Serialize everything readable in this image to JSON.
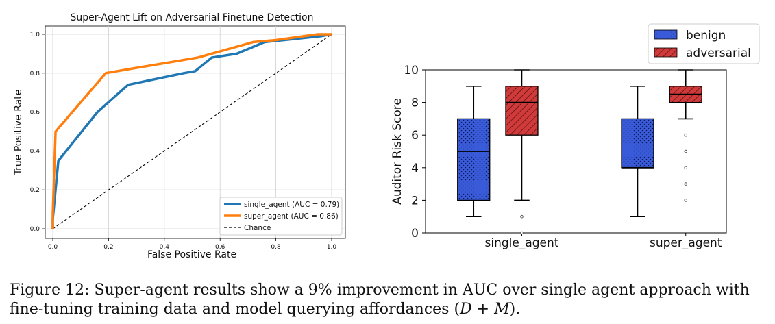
{
  "chart_data": [
    {
      "type": "line",
      "title": "Super-Agent Lift on Adversarial Finetune Detection",
      "xlabel": "False Positive Rate",
      "ylabel": "True Positive Rate",
      "xlim": [
        0,
        1
      ],
      "ylim": [
        0,
        1
      ],
      "grid": true,
      "legend_position": "bottom-right",
      "x_ticks": [
        "0.0",
        "0.2",
        "0.4",
        "0.6",
        "0.8",
        "1.0"
      ],
      "y_ticks": [
        "0.0",
        "0.2",
        "0.4",
        "0.6",
        "0.8",
        "1.0"
      ],
      "series": [
        {
          "name": "single_agent (AUC = 0.79)",
          "color": "#1f77b4",
          "style": "solid",
          "x": [
            0,
            0,
            0.02,
            0.16,
            0.27,
            0.47,
            0.51,
            0.57,
            0.66,
            0.76,
            0.83,
            0.96,
            1.0
          ],
          "y": [
            0,
            0.05,
            0.35,
            0.6,
            0.74,
            0.8,
            0.81,
            0.88,
            0.9,
            0.96,
            0.97,
            0.99,
            1.0
          ]
        },
        {
          "name": "super_agent (AUC = 0.86)",
          "color": "#ff7f0e",
          "style": "solid",
          "x": [
            0,
            0,
            0.01,
            0.19,
            0.27,
            0.52,
            0.62,
            0.72,
            0.8,
            0.95,
            0.99,
            1.0
          ],
          "y": [
            0,
            0.08,
            0.5,
            0.8,
            0.82,
            0.88,
            0.92,
            0.96,
            0.97,
            1.0,
            1.0,
            1.0
          ]
        },
        {
          "name": "Chance",
          "color": "#000000",
          "style": "dashed",
          "x": [
            0,
            1
          ],
          "y": [
            0,
            1
          ]
        }
      ]
    },
    {
      "type": "box",
      "title": "",
      "xlabel": "",
      "ylabel": "Auditor Risk Score",
      "ylim": [
        0,
        10
      ],
      "y_ticks": [
        "0",
        "2",
        "4",
        "6",
        "8",
        "10"
      ],
      "categories": [
        "single_agent",
        "super_agent"
      ],
      "legend_position": "top-right",
      "series": [
        {
          "name": "benign",
          "color": "#3a5bd9",
          "pattern": "dots",
          "boxes": [
            {
              "whisker_low": 1,
              "q1": 2,
              "median": 5,
              "q3": 7,
              "whisker_high": 9,
              "outliers": []
            },
            {
              "whisker_low": 1,
              "q1": 4,
              "median": 4,
              "q3": 7,
              "whisker_high": 9,
              "outliers": []
            }
          ]
        },
        {
          "name": "adversarial",
          "color": "#d03a3a",
          "pattern": "hatch",
          "boxes": [
            {
              "whisker_low": 2,
              "q1": 6,
              "median": 8,
              "q3": 9,
              "whisker_high": 10,
              "outliers": [
                1,
                0
              ]
            },
            {
              "whisker_low": 7,
              "q1": 8,
              "median": 8.5,
              "q3": 9,
              "whisker_high": 10,
              "outliers": [
                6,
                5,
                4,
                3,
                2
              ]
            }
          ]
        }
      ]
    }
  ],
  "caption": {
    "label": "Figure 12:",
    "text_part1": " Super-agent results show a 9% improvement in AUC over single agent approach with fine-tuning training data and model querying affordances (",
    "math": "D + M",
    "text_part2": ")."
  }
}
